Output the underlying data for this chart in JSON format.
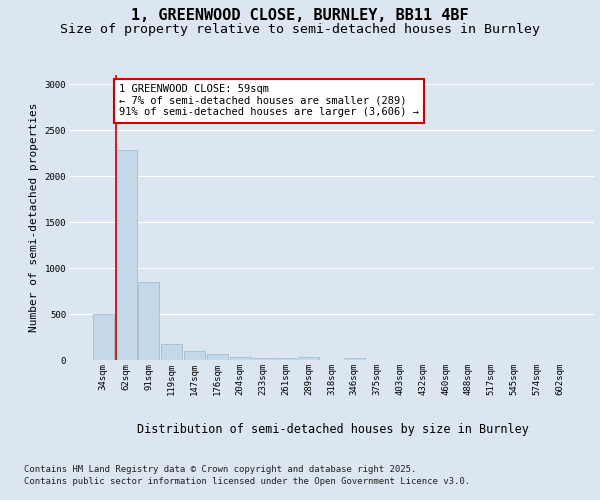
{
  "title_line1": "1, GREENWOOD CLOSE, BURNLEY, BB11 4BF",
  "title_line2": "Size of property relative to semi-detached houses in Burnley",
  "xlabel": "Distribution of semi-detached houses by size in Burnley",
  "ylabel": "Number of semi-detached properties",
  "bins": [
    "34sqm",
    "62sqm",
    "91sqm",
    "119sqm",
    "147sqm",
    "176sqm",
    "204sqm",
    "233sqm",
    "261sqm",
    "289sqm",
    "318sqm",
    "346sqm",
    "375sqm",
    "403sqm",
    "432sqm",
    "460sqm",
    "488sqm",
    "517sqm",
    "545sqm",
    "574sqm",
    "602sqm"
  ],
  "values": [
    500,
    2280,
    850,
    175,
    100,
    60,
    35,
    25,
    20,
    30,
    0,
    20,
    0,
    0,
    0,
    0,
    0,
    0,
    0,
    0,
    0
  ],
  "bar_color": "#c5d8ea",
  "bar_edge_color": "#9ab8cc",
  "vline_color": "#cc0000",
  "vline_x": 0.57,
  "annotation_text": "1 GREENWOOD CLOSE: 59sqm\n← 7% of semi-detached houses are smaller (289)\n91% of semi-detached houses are larger (3,606) →",
  "annotation_box_facecolor": "#ffffff",
  "annotation_box_edgecolor": "#cc0000",
  "ylim": [
    0,
    3100
  ],
  "yticks": [
    0,
    500,
    1000,
    1500,
    2000,
    2500,
    3000
  ],
  "bg_color": "#dce6f0",
  "plot_bg_color": "#dce6f0",
  "grid_color": "#ffffff",
  "footer_line1": "Contains HM Land Registry data © Crown copyright and database right 2025.",
  "footer_line2": "Contains public sector information licensed under the Open Government Licence v3.0.",
  "title_fontsize": 11,
  "subtitle_fontsize": 9.5,
  "ylabel_fontsize": 8,
  "xlabel_fontsize": 8.5,
  "tick_fontsize": 6.5,
  "annotation_fontsize": 7.5,
  "footer_fontsize": 6.5
}
